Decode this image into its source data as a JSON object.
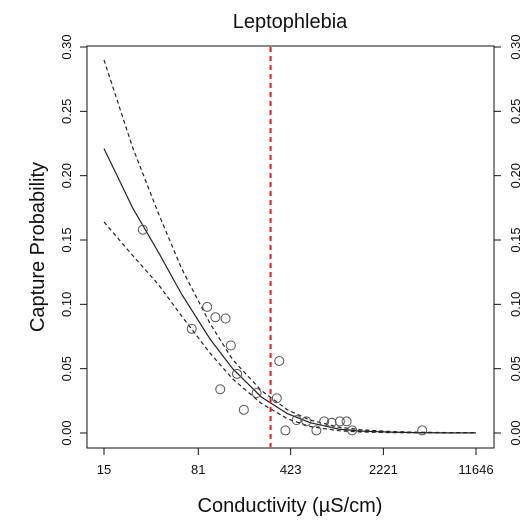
{
  "chart_data": {
    "type": "scatter",
    "title": "Leptophlebia",
    "xlabel": "Conductivity (µS/cm)",
    "ylabel": "Capture Probability",
    "x_scale": "log",
    "xlim": [
      15,
      11646
    ],
    "ylim": [
      0,
      0.3
    ],
    "x_ticks": [
      15,
      81,
      423,
      2221,
      11646
    ],
    "x_tick_labels": [
      "15",
      "81",
      "423",
      "2221",
      "11646"
    ],
    "y_ticks": [
      0,
      0.05,
      0.1,
      0.15,
      0.2,
      0.25,
      0.3
    ],
    "y_tick_labels": [
      "0.00",
      "0.05",
      "0.10",
      "0.15",
      "0.20",
      "0.25",
      "0.30"
    ],
    "right_axis": true,
    "grid": false,
    "threshold_line": {
      "x": 295,
      "color": "#e8211f",
      "style": "dashed"
    },
    "points": [
      {
        "x": 30,
        "y": 0.158
      },
      {
        "x": 72,
        "y": 0.081
      },
      {
        "x": 95,
        "y": 0.098
      },
      {
        "x": 110,
        "y": 0.09
      },
      {
        "x": 120,
        "y": 0.034
      },
      {
        "x": 132,
        "y": 0.089
      },
      {
        "x": 145,
        "y": 0.068
      },
      {
        "x": 162,
        "y": 0.046
      },
      {
        "x": 183,
        "y": 0.018
      },
      {
        "x": 230,
        "y": 0.031
      },
      {
        "x": 330,
        "y": 0.027
      },
      {
        "x": 345,
        "y": 0.056
      },
      {
        "x": 385,
        "y": 0.002
      },
      {
        "x": 470,
        "y": 0.01
      },
      {
        "x": 560,
        "y": 0.009
      },
      {
        "x": 670,
        "y": 0.002
      },
      {
        "x": 770,
        "y": 0.009
      },
      {
        "x": 880,
        "y": 0.008
      },
      {
        "x": 1020,
        "y": 0.009
      },
      {
        "x": 1150,
        "y": 0.009
      },
      {
        "x": 1270,
        "y": 0.002
      },
      {
        "x": 4450,
        "y": 0.002
      }
    ],
    "series": [
      {
        "style": "solid",
        "x": [
          15,
          25,
          40,
          60,
          100,
          150,
          250,
          400,
          600,
          1000,
          1500,
          2500,
          4000,
          7000,
          11646
        ],
        "values": [
          0.221,
          0.175,
          0.14,
          0.108,
          0.073,
          0.05,
          0.028,
          0.015,
          0.008,
          0.003,
          0.0015,
          0.0007,
          0.0003,
          0.0001,
          0.0001
        ]
      },
      {
        "style": "dashed",
        "x": [
          15,
          25,
          40,
          60,
          100,
          150,
          250,
          400,
          600,
          1000,
          1500,
          2500,
          4000,
          7000,
          11646
        ],
        "values": [
          0.29,
          0.222,
          0.17,
          0.128,
          0.085,
          0.057,
          0.033,
          0.018,
          0.01,
          0.0045,
          0.0025,
          0.0012,
          0.0006,
          0.0003,
          0.0002
        ]
      },
      {
        "style": "dashed",
        "x": [
          15,
          25,
          40,
          60,
          100,
          150,
          250,
          400,
          600,
          1000,
          1500,
          2500,
          4000,
          7000,
          11646
        ],
        "values": [
          0.164,
          0.138,
          0.115,
          0.091,
          0.062,
          0.042,
          0.023,
          0.011,
          0.005,
          0.0018,
          0.0008,
          0.0003,
          0.0001,
          0.0,
          0.0
        ]
      }
    ]
  },
  "colors": {
    "axis": "#111111",
    "curve": "#222222",
    "point_stroke": "#555555",
    "threshold": "#e8211f"
  }
}
